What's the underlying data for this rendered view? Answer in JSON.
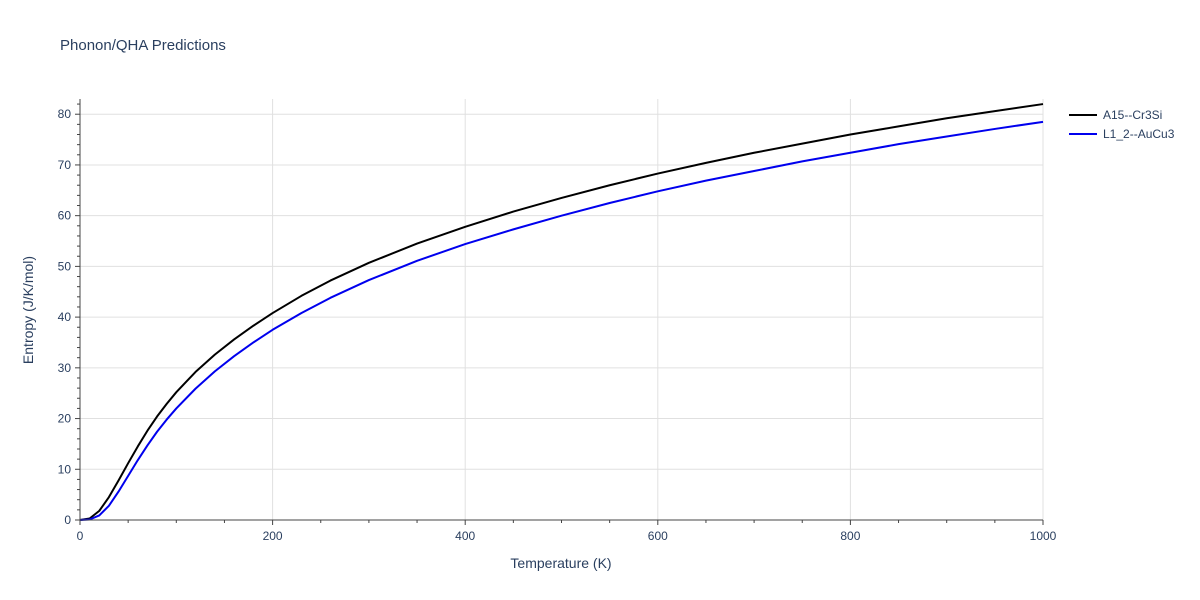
{
  "chart_data": {
    "type": "line",
    "title": "Phonon/QHA Predictions",
    "xlabel": "Temperature (K)",
    "ylabel": "Entropy (J/K/mol)",
    "xlim": [
      0,
      1000
    ],
    "ylim": [
      0,
      83
    ],
    "xticks": [
      0,
      200,
      400,
      600,
      800,
      1000
    ],
    "yticks": [
      0,
      10,
      20,
      30,
      40,
      50,
      60,
      70,
      80
    ],
    "grid": true,
    "legend_position": "top-right",
    "series": [
      {
        "name": "A15--Cr3Si",
        "color": "#000000",
        "x": [
          0,
          10,
          20,
          30,
          40,
          50,
          60,
          70,
          80,
          90,
          100,
          120,
          140,
          160,
          180,
          200,
          230,
          260,
          300,
          350,
          400,
          450,
          500,
          550,
          600,
          650,
          700,
          750,
          800,
          850,
          900,
          950,
          1000
        ],
        "y": [
          0,
          0.3,
          1.8,
          4.5,
          7.8,
          11.2,
          14.5,
          17.6,
          20.4,
          22.9,
          25.2,
          29.2,
          32.6,
          35.6,
          38.3,
          40.8,
          44.2,
          47.2,
          50.7,
          54.5,
          57.8,
          60.8,
          63.5,
          66.0,
          68.3,
          70.4,
          72.4,
          74.2,
          76.0,
          77.6,
          79.2,
          80.6,
          82.0
        ]
      },
      {
        "name": "L1_2--AuCu3",
        "color": "#0000ee",
        "x": [
          0,
          10,
          20,
          30,
          40,
          50,
          60,
          70,
          80,
          90,
          100,
          120,
          140,
          160,
          180,
          200,
          230,
          260,
          300,
          350,
          400,
          450,
          500,
          550,
          600,
          650,
          700,
          750,
          800,
          850,
          900,
          950,
          1000
        ],
        "y": [
          0,
          0.1,
          0.9,
          2.8,
          5.6,
          8.7,
          11.8,
          14.7,
          17.4,
          19.8,
          22.0,
          25.9,
          29.3,
          32.3,
          35.0,
          37.5,
          40.8,
          43.8,
          47.3,
          51.1,
          54.4,
          57.3,
          60.0,
          62.5,
          64.8,
          66.9,
          68.8,
          70.7,
          72.4,
          74.1,
          75.6,
          77.1,
          78.5
        ]
      }
    ]
  }
}
